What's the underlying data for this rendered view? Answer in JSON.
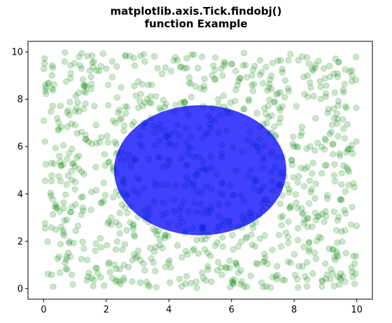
{
  "chart_data": {
    "type": "scatter",
    "title": "matplotlib.axis.Tick.findobj()\nfunction Example",
    "xlabel": "",
    "ylabel": "",
    "xlim": [
      -0.5,
      10.5
    ],
    "ylim": [
      -0.45,
      10.45
    ],
    "xticks": [
      0,
      2,
      4,
      6,
      8,
      10
    ],
    "yticks": [
      0,
      2,
      4,
      6,
      8,
      10
    ],
    "grid": false,
    "series": [
      {
        "marker": "circle",
        "color": "#008000",
        "alpha": 0.2,
        "count": 1000,
        "distribution": "uniform 0-10 on both axes"
      }
    ],
    "shapes": [
      {
        "type": "ellipse",
        "center": [
          5,
          5
        ],
        "width": 5.5,
        "height": 5.5,
        "color": "#0000ff",
        "alpha": 0.75
      }
    ]
  }
}
